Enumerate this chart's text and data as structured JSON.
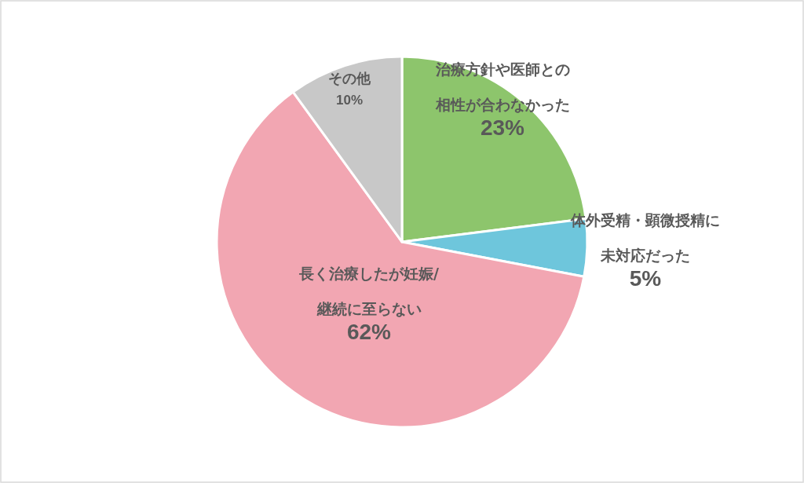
{
  "chart_data": {
    "type": "pie",
    "categories": [
      "治療方針や医師との相性が合わなかった",
      "体外受精・顕微授精に未対応だった",
      "長く治療したが妊娠/継続に至らない",
      "その他"
    ],
    "values": [
      23,
      5,
      62,
      10
    ],
    "value_labels": [
      "23%",
      "5%",
      "62%",
      "10%"
    ],
    "colors": [
      "#8dc56c",
      "#6ec6dc",
      "#f2a6b2",
      "#c8c8c8"
    ]
  }
}
